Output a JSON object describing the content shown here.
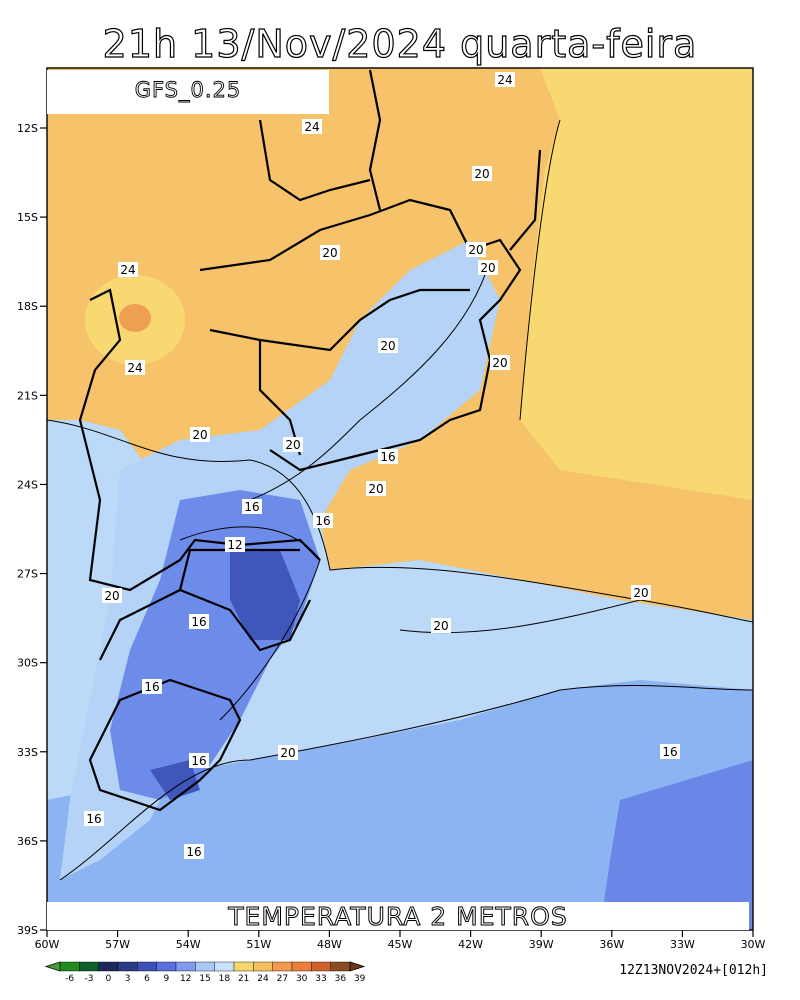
{
  "title": "21h 13/Nov/2024 quarta-feira",
  "model": "GFS_0.25",
  "field": "TEMPERATURA 2 METROS",
  "run": "12Z13NOV2024+[012h]",
  "map": {
    "lon_ticks": [
      "60W",
      "57W",
      "54W",
      "51W",
      "48W",
      "45W",
      "42W",
      "39W",
      "36W",
      "33W",
      "30W"
    ],
    "lat_ticks": [
      "12S",
      "15S",
      "18S",
      "21S",
      "24S",
      "27S",
      "30S",
      "33S",
      "36S",
      "39S"
    ],
    "contour_labels": [
      "24",
      "24",
      "20",
      "20",
      "20",
      "20",
      "24",
      "24",
      "20",
      "20",
      "20",
      "20",
      "16",
      "20",
      "16",
      "16",
      "12",
      "20",
      "20",
      "20",
      "16",
      "16",
      "20",
      "16",
      "16",
      "16",
      "16"
    ]
  },
  "colorbar": {
    "ticks": [
      "-6",
      "-3",
      "0",
      "3",
      "6",
      "9",
      "12",
      "15",
      "18",
      "21",
      "24",
      "27",
      "30",
      "33",
      "36",
      "39"
    ],
    "colors": [
      "#4a9e3a",
      "#1f8a1f",
      "#0b5f2a",
      "#1b2a5a",
      "#2b3c86",
      "#3c50b8",
      "#5a6fe0",
      "#7f9af0",
      "#a8c8f5",
      "#c7e2fa",
      "#f6d56a",
      "#f5bf5f",
      "#f49a4f",
      "#ea7f3a",
      "#d2622b",
      "#8b4c22",
      "#6e3a19"
    ]
  }
}
